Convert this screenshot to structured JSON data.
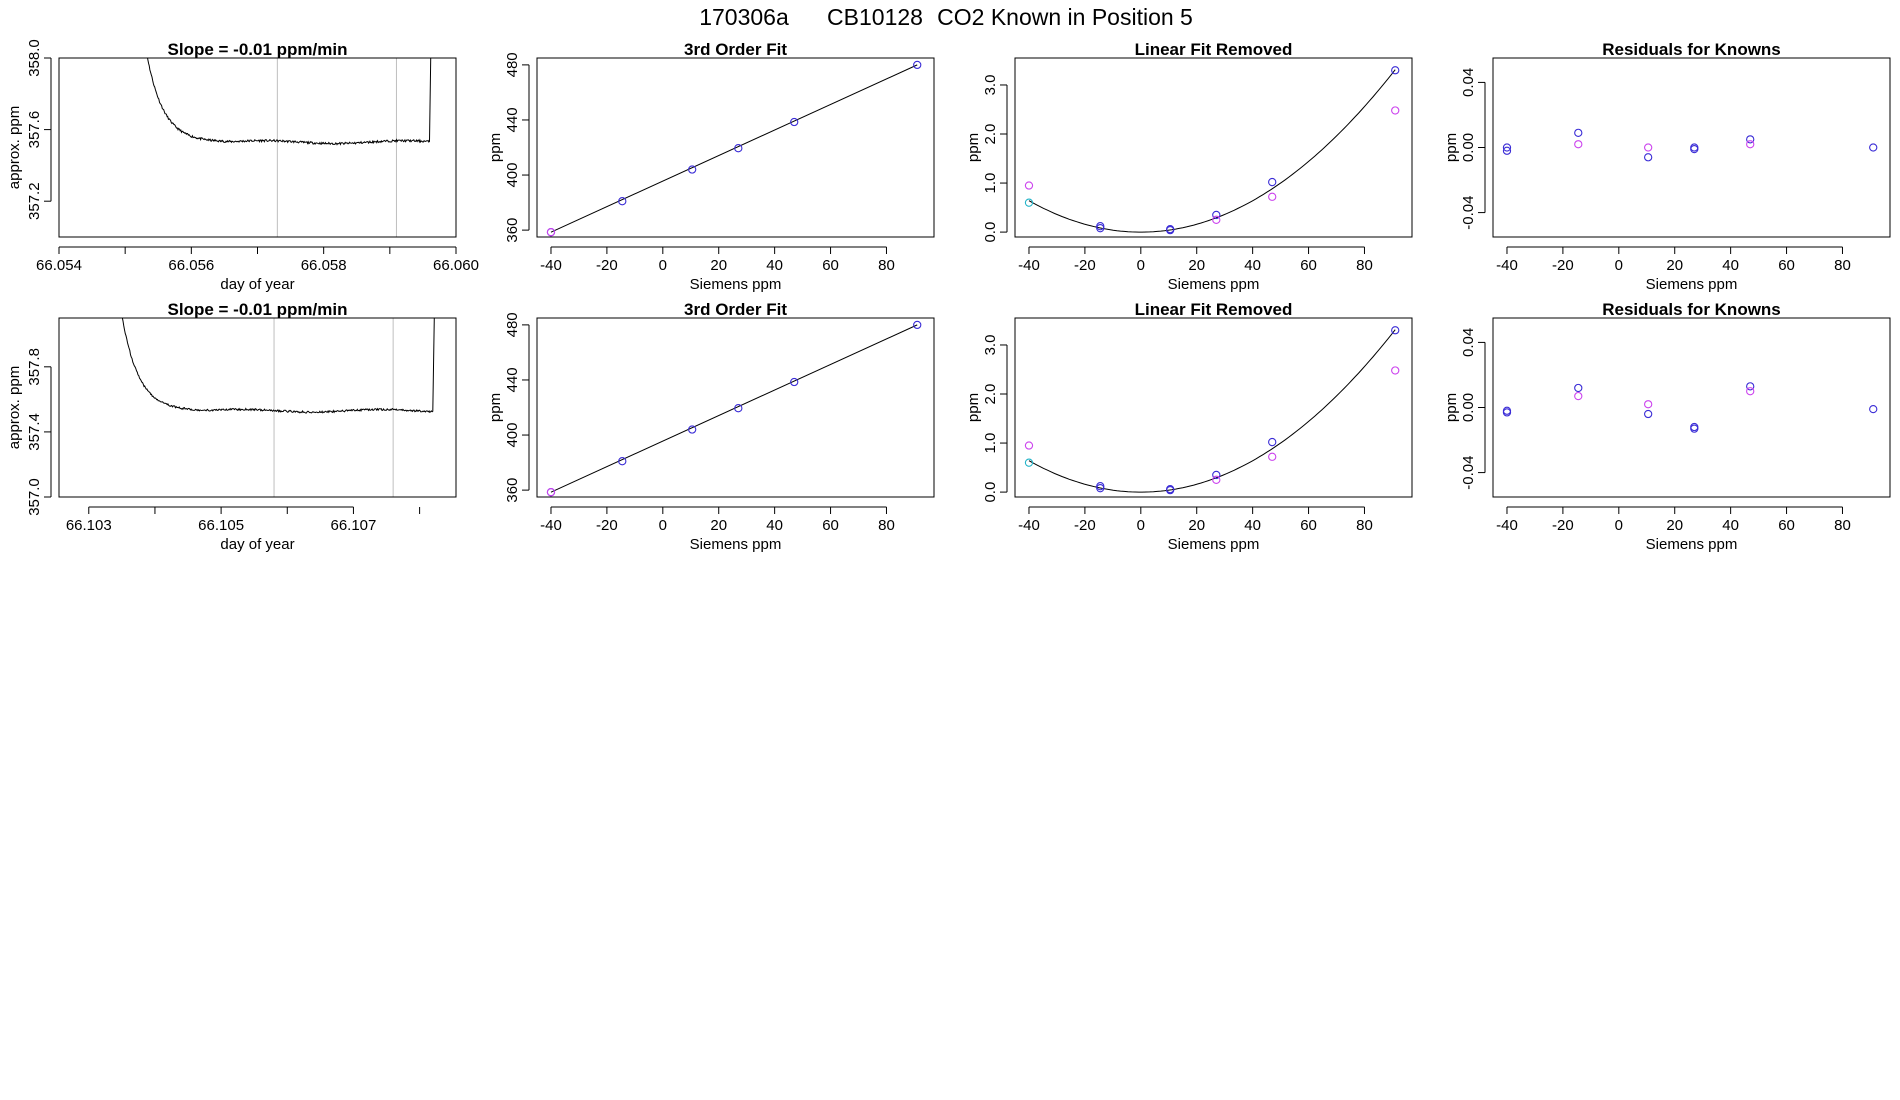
{
  "title": {
    "run": "170306a",
    "tank": "CB10128",
    "label": "CO2 Known in Position  5"
  },
  "colors": {
    "axis": "#000000",
    "line": "#000000",
    "vline": "#bebebe",
    "blue": "#3a2cd6",
    "magenta": "#cc44ee",
    "cyan": "#22b4c8"
  },
  "chart_data": [
    {
      "type": "line",
      "title": "Slope =  -0.01  ppm/min",
      "xlabel": "day of year",
      "ylabel": "approx. ppm",
      "xlim": [
        66.054,
        66.06
      ],
      "ylim": [
        357.0,
        358.0
      ],
      "xticks": [
        66.054,
        66.056,
        66.058,
        66.06
      ],
      "xticklabels": [
        "66.054",
        "66.056",
        "66.058",
        "66.060"
      ],
      "xminor": [
        66.055,
        66.057,
        66.059
      ],
      "yticks": [
        357.2,
        357.6,
        358.0
      ],
      "yticklabels": [
        "357.2",
        "357.6",
        "358.0"
      ],
      "window": [
        66.0573,
        66.0591
      ],
      "trace": {
        "start": 66.05525,
        "end": 66.0596,
        "top": 358.2,
        "plateau": 357.53,
        "noise": 0.012,
        "tau": 0.00025,
        "dip": 66.0566,
        "rise_peak": 358.3
      }
    },
    {
      "type": "scatter",
      "title": "3rd Order Fit",
      "xlabel": "Siemens ppm",
      "ylabel": "ppm",
      "xlim": [
        -45,
        97
      ],
      "ylim": [
        355,
        485
      ],
      "xticks": [
        -40,
        -20,
        0,
        20,
        40,
        60,
        80
      ],
      "xticklabels": [
        "-40",
        "-20",
        "0",
        "20",
        "40",
        "60",
        "80"
      ],
      "yticks": [
        360,
        400,
        440,
        480
      ],
      "yticklabels": [
        "360",
        "400",
        "440",
        "480"
      ],
      "fit": {
        "kind": "linear",
        "x": [
          -40,
          91
        ],
        "y": [
          358.5,
          480
        ]
      },
      "series": [
        {
          "name": "blue",
          "color": "blue",
          "x": [
            -40,
            -14.5,
            10.5,
            27,
            47,
            91
          ],
          "y": [
            358.5,
            381,
            404,
            419.5,
            438.5,
            480
          ]
        },
        {
          "name": "magenta",
          "color": "magenta",
          "x": [
            -40
          ],
          "y": [
            358.5
          ]
        }
      ]
    },
    {
      "type": "scatter",
      "title": "Linear Fit Removed",
      "xlabel": "Siemens ppm",
      "ylabel": "ppm",
      "xlim": [
        -45,
        97
      ],
      "ylim": [
        -0.1,
        3.55
      ],
      "xticks": [
        -40,
        -20,
        0,
        20,
        40,
        60,
        80
      ],
      "xticklabels": [
        "-40",
        "-20",
        "0",
        "20",
        "40",
        "60",
        "80"
      ],
      "yticks": [
        0.0,
        1.0,
        2.0,
        3.0
      ],
      "yticklabels": [
        "0.0",
        "1.0",
        "2.0",
        "3.0"
      ],
      "fit": {
        "kind": "quadratic",
        "a": 0.0004,
        "b": 0.0,
        "c": 0.0,
        "x": [
          -40,
          91
        ]
      },
      "series": [
        {
          "name": "blue",
          "color": "blue",
          "x": [
            -14.5,
            -14.5,
            10.5,
            10.5,
            27,
            47,
            91
          ],
          "y": [
            0.12,
            0.08,
            0.06,
            0.04,
            0.35,
            1.02,
            3.3
          ]
        },
        {
          "name": "magenta",
          "color": "magenta",
          "x": [
            -40,
            27,
            47,
            91
          ],
          "y": [
            0.95,
            0.25,
            0.72,
            2.48
          ]
        },
        {
          "name": "cyan",
          "color": "cyan",
          "x": [
            -40
          ],
          "y": [
            0.6
          ]
        }
      ]
    },
    {
      "type": "scatter",
      "title": "Residuals for Knowns",
      "xlabel": "Siemens ppm",
      "ylabel": "ppm",
      "xlim": [
        -45,
        97
      ],
      "ylim": [
        -0.055,
        0.055
      ],
      "xticks": [
        -40,
        -20,
        0,
        20,
        40,
        60,
        80
      ],
      "xticklabels": [
        "-40",
        "-20",
        "0",
        "20",
        "40",
        "60",
        "80"
      ],
      "yticks": [
        -0.04,
        0.0,
        0.04
      ],
      "yticklabels": [
        "-0.04",
        "0.00",
        "0.04"
      ],
      "series": [
        {
          "name": "blue",
          "color": "blue",
          "x": [
            -40,
            -40,
            -14.5,
            10.5,
            27,
            27,
            47,
            91
          ],
          "y": [
            0.0,
            -0.002,
            0.009,
            -0.006,
            -0.001,
            0.0,
            0.005,
            0.0
          ]
        },
        {
          "name": "magenta",
          "color": "magenta",
          "x": [
            -14.5,
            10.5,
            47
          ],
          "y": [
            0.002,
            0.0,
            0.002
          ]
        }
      ]
    },
    {
      "type": "line",
      "title": "Slope =  -0.01  ppm/min",
      "xlabel": "day of year",
      "ylabel": "approx. ppm",
      "xlim": [
        66.10255,
        66.10855
      ],
      "ylim": [
        357.0,
        358.1
      ],
      "xticks": [
        66.103,
        66.105,
        66.107
      ],
      "xticklabels": [
        "66.103",
        "66.105",
        "66.107"
      ],
      "xminor": [
        66.104,
        66.106,
        66.108
      ],
      "yticks": [
        357.0,
        357.4,
        357.8
      ],
      "yticklabels": [
        "357.0",
        "357.4",
        "357.8"
      ],
      "window": [
        66.1058,
        66.1076
      ],
      "trace": {
        "start": 66.10345,
        "end": 66.1082,
        "top": 358.25,
        "plateau": 357.53,
        "noise": 0.012,
        "tau": 0.00025,
        "dip": 66.1048,
        "rise_peak": 358.3
      }
    },
    {
      "type": "scatter",
      "title": "3rd Order Fit",
      "xlabel": "Siemens ppm",
      "ylabel": "ppm",
      "xlim": [
        -45,
        97
      ],
      "ylim": [
        355,
        485
      ],
      "xticks": [
        -40,
        -20,
        0,
        20,
        40,
        60,
        80
      ],
      "xticklabels": [
        "-40",
        "-20",
        "0",
        "20",
        "40",
        "60",
        "80"
      ],
      "yticks": [
        360,
        400,
        440,
        480
      ],
      "yticklabels": [
        "360",
        "400",
        "440",
        "480"
      ],
      "fit": {
        "kind": "linear",
        "x": [
          -40,
          91
        ],
        "y": [
          358.5,
          480
        ]
      },
      "series": [
        {
          "name": "blue",
          "color": "blue",
          "x": [
            -40,
            -14.5,
            10.5,
            27,
            47,
            91
          ],
          "y": [
            358.5,
            381,
            404,
            419.5,
            438.5,
            480
          ]
        },
        {
          "name": "magenta",
          "color": "magenta",
          "x": [
            -40
          ],
          "y": [
            358.5
          ]
        }
      ]
    },
    {
      "type": "scatter",
      "title": "Linear Fit Removed",
      "xlabel": "Siemens ppm",
      "ylabel": "ppm",
      "xlim": [
        -45,
        97
      ],
      "ylim": [
        -0.1,
        3.55
      ],
      "xticks": [
        -40,
        -20,
        0,
        20,
        40,
        60,
        80
      ],
      "xticklabels": [
        "-40",
        "-20",
        "0",
        "20",
        "40",
        "60",
        "80"
      ],
      "yticks": [
        0.0,
        1.0,
        2.0,
        3.0
      ],
      "yticklabels": [
        "0.0",
        "1.0",
        "2.0",
        "3.0"
      ],
      "fit": {
        "kind": "quadratic",
        "a": 0.0004,
        "b": 0.0,
        "c": 0.0,
        "x": [
          -40,
          91
        ]
      },
      "series": [
        {
          "name": "blue",
          "color": "blue",
          "x": [
            -14.5,
            -14.5,
            10.5,
            10.5,
            27,
            47,
            91
          ],
          "y": [
            0.12,
            0.08,
            0.06,
            0.04,
            0.35,
            1.02,
            3.3
          ]
        },
        {
          "name": "magenta",
          "color": "magenta",
          "x": [
            -40,
            27,
            47,
            91
          ],
          "y": [
            0.95,
            0.25,
            0.72,
            2.48
          ]
        },
        {
          "name": "cyan",
          "color": "cyan",
          "x": [
            -40
          ],
          "y": [
            0.6
          ]
        }
      ]
    },
    {
      "type": "scatter",
      "title": "Residuals for Knowns",
      "xlabel": "Siemens ppm",
      "ylabel": "ppm",
      "xlim": [
        -45,
        97
      ],
      "ylim": [
        -0.055,
        0.055
      ],
      "xticks": [
        -40,
        -20,
        0,
        20,
        40,
        60,
        80
      ],
      "xticklabels": [
        "-40",
        "-20",
        "0",
        "20",
        "40",
        "60",
        "80"
      ],
      "yticks": [
        -0.04,
        0.0,
        0.04
      ],
      "yticklabels": [
        "-0.04",
        "0.00",
        "0.04"
      ],
      "series": [
        {
          "name": "blue",
          "color": "blue",
          "x": [
            -40,
            -40,
            -14.5,
            10.5,
            27,
            27,
            47,
            91
          ],
          "y": [
            -0.002,
            -0.003,
            0.012,
            -0.004,
            -0.013,
            -0.012,
            0.013,
            -0.001
          ]
        },
        {
          "name": "magenta",
          "color": "magenta",
          "x": [
            -14.5,
            10.5,
            47
          ],
          "y": [
            0.007,
            0.002,
            0.01
          ]
        }
      ]
    }
  ]
}
